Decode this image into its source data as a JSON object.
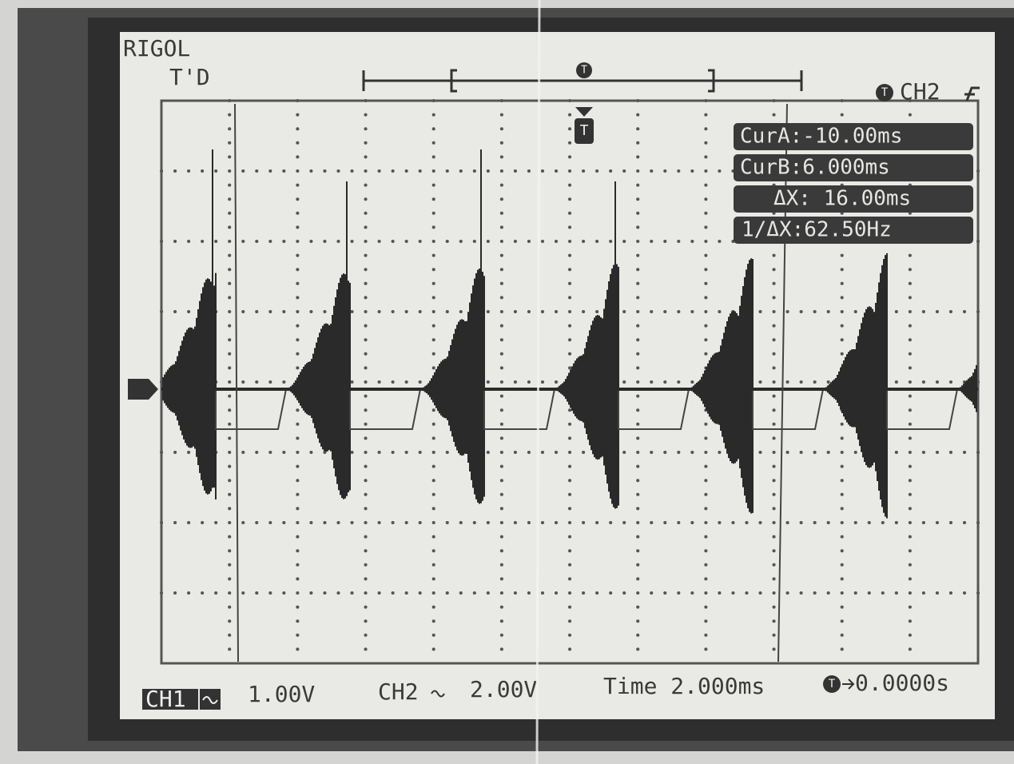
{
  "brand": "RIGOL",
  "status": "T'D",
  "trigger_icon": "T",
  "trigger_source": "CH2",
  "cursor": {
    "cur_a": "CurA:-10.00ms",
    "cur_b": "CurB:6.000ms",
    "delta_x": "ΔX: 16.00ms",
    "inv_delta_x": "1/ΔX:62.50Hz"
  },
  "footer": {
    "ch1": "CH1",
    "ch1_scale": "1.00V",
    "ch2": "CH2",
    "ch2_scale": "2.00V",
    "time": "Time 2.000ms",
    "trigger_offset": "0.0000s"
  }
}
